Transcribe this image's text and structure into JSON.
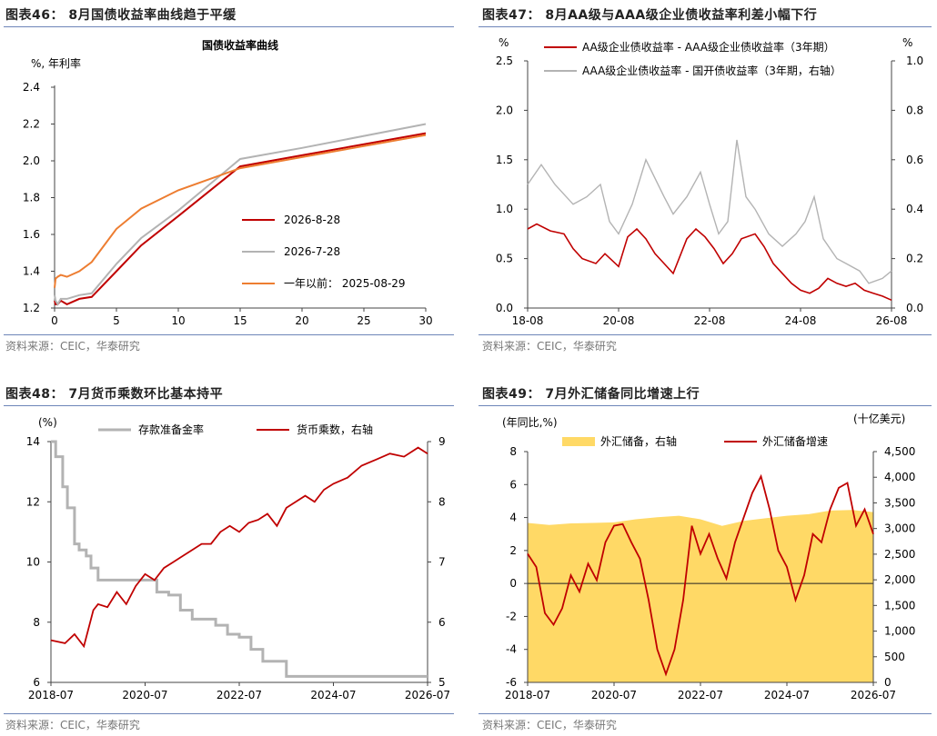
{
  "source": "资料来源：CEIC，华泰研究",
  "colors": {
    "red": "#c00000",
    "gray": "#b3b3b3",
    "orange": "#ed7d31",
    "gold": "#ffd966",
    "rule": "#6d85b8"
  },
  "chart_data": [
    {
      "id": "fig46",
      "panel_title": "图表46：  8月国债收益率曲线趋于平缓",
      "type": "line",
      "title": "国债收益率曲线",
      "ylabel": "%, 年利率",
      "xlim": [
        0,
        30
      ],
      "ylim": [
        1.2,
        2.4
      ],
      "x_ticks": [
        0,
        5,
        10,
        15,
        20,
        25,
        30
      ],
      "y_ticks": [
        "1.2",
        "1.4",
        "1.6",
        "1.8",
        "2.0",
        "2.2",
        "2.4"
      ],
      "legend": "inside-right",
      "series": [
        {
          "name": "2026-8-28",
          "color": "#c00000",
          "x": [
            0,
            0.08,
            0.25,
            0.5,
            1,
            2,
            3,
            5,
            7,
            10,
            15,
            20,
            30
          ],
          "y": [
            1.24,
            1.22,
            1.22,
            1.24,
            1.22,
            1.25,
            1.26,
            1.4,
            1.54,
            1.7,
            1.97,
            2.03,
            2.15
          ]
        },
        {
          "name": "2026-7-28",
          "color": "#b3b3b3",
          "x": [
            0,
            0.08,
            0.25,
            0.5,
            1,
            2,
            3,
            5,
            7,
            10,
            15,
            20,
            30
          ],
          "y": [
            1.27,
            1.24,
            1.22,
            1.25,
            1.25,
            1.27,
            1.28,
            1.44,
            1.58,
            1.73,
            2.01,
            2.07,
            2.2
          ]
        },
        {
          "name": "一年以前：  2025-08-29",
          "color": "#ed7d31",
          "x": [
            0,
            0.08,
            0.25,
            0.5,
            1,
            2,
            3,
            5,
            7,
            10,
            15,
            20,
            30
          ],
          "y": [
            1.31,
            1.36,
            1.37,
            1.38,
            1.37,
            1.4,
            1.45,
            1.63,
            1.74,
            1.84,
            1.96,
            2.02,
            2.14
          ]
        }
      ]
    },
    {
      "id": "fig47",
      "panel_title": "图表47：  8月AA级与AAA级企业债收益率利差小幅下行",
      "type": "line",
      "ylabel": "%",
      "ylabel_right": "%",
      "x_ticks": [
        "18-08",
        "20-08",
        "22-08",
        "24-08",
        "26-08"
      ],
      "ylim": [
        0,
        2.5
      ],
      "ylim_right": [
        0,
        1.0
      ],
      "y_ticks": [
        "0.0",
        "0.5",
        "1.0",
        "1.5",
        "2.0",
        "2.5"
      ],
      "y_ticks_right": [
        "0.0",
        "0.2",
        "0.4",
        "0.6",
        "0.8",
        "1.0"
      ],
      "legend": "top",
      "series": [
        {
          "name": "AA级企业债收益率 - AAA级企业债收益率（3年期）",
          "color": "#c00000",
          "axis": "left",
          "x": [
            0,
            0.2,
            0.5,
            0.8,
            1.0,
            1.2,
            1.5,
            1.7,
            2.0,
            2.2,
            2.4,
            2.6,
            2.8,
            3.0,
            3.2,
            3.5,
            3.7,
            3.9,
            4.1,
            4.3,
            4.5,
            4.7,
            5.0,
            5.2,
            5.4,
            5.6,
            5.8,
            6.0,
            6.2,
            6.4,
            6.6,
            6.8,
            7.0,
            7.2,
            7.4,
            7.6,
            7.8,
            8.0
          ],
          "y": [
            0.8,
            0.85,
            0.78,
            0.75,
            0.6,
            0.5,
            0.45,
            0.55,
            0.42,
            0.72,
            0.8,
            0.7,
            0.55,
            0.45,
            0.35,
            0.7,
            0.8,
            0.72,
            0.6,
            0.45,
            0.55,
            0.7,
            0.75,
            0.62,
            0.45,
            0.35,
            0.25,
            0.18,
            0.15,
            0.2,
            0.3,
            0.25,
            0.22,
            0.25,
            0.18,
            0.15,
            0.12,
            0.08
          ]
        },
        {
          "name": "AAA级企业债收益率 - 国开债收益率（3年期，右轴）",
          "color": "#b3b3b3",
          "axis": "right",
          "x": [
            0,
            0.3,
            0.6,
            1.0,
            1.3,
            1.6,
            1.8,
            2.0,
            2.3,
            2.6,
            3.0,
            3.2,
            3.5,
            3.8,
            4.0,
            4.2,
            4.4,
            4.6,
            4.8,
            5.0,
            5.3,
            5.6,
            5.9,
            6.1,
            6.3,
            6.5,
            6.8,
            7.0,
            7.3,
            7.5,
            7.8,
            8.0
          ],
          "y": [
            0.5,
            0.58,
            0.5,
            0.42,
            0.45,
            0.5,
            0.35,
            0.3,
            0.42,
            0.6,
            0.45,
            0.38,
            0.45,
            0.55,
            0.42,
            0.3,
            0.35,
            0.68,
            0.45,
            0.4,
            0.3,
            0.25,
            0.3,
            0.35,
            0.45,
            0.28,
            0.2,
            0.18,
            0.15,
            0.1,
            0.12,
            0.15
          ]
        }
      ]
    },
    {
      "id": "fig48",
      "panel_title": "图表48：  7月货币乘数环比基本持平",
      "type": "line",
      "ylabel": "(%)",
      "x_ticks": [
        "2018-07",
        "2020-07",
        "2022-07",
        "2024-07",
        "2026-07"
      ],
      "ylim": [
        6,
        14
      ],
      "ylim_right": [
        5,
        9
      ],
      "y_ticks": [
        "6",
        "8",
        "10",
        "12",
        "14"
      ],
      "y_ticks_right": [
        "5",
        "6",
        "7",
        "8",
        "9"
      ],
      "legend": "top",
      "series": [
        {
          "name": "存款准备金率",
          "color": "#b3b3b3",
          "axis": "left",
          "step": true,
          "x": [
            0,
            0.1,
            0.25,
            0.35,
            0.5,
            0.6,
            0.75,
            0.85,
            1.0,
            1.15,
            1.25,
            1.45,
            1.75,
            2.0,
            2.25,
            2.5,
            2.75,
            3.0,
            3.25,
            3.5,
            3.75,
            4.0,
            4.25,
            4.5,
            5.0,
            5.5,
            6.0,
            6.5,
            7.0,
            7.5,
            8.0
          ],
          "y": [
            14.5,
            13.5,
            12.5,
            11.8,
            10.6,
            10.4,
            10.2,
            9.8,
            9.4,
            9.4,
            9.4,
            9.4,
            9.4,
            9.4,
            9.0,
            8.9,
            8.4,
            8.1,
            8.1,
            7.9,
            7.6,
            7.5,
            7.1,
            6.7,
            6.2,
            6.2,
            6.2,
            6.2,
            6.2,
            6.2,
            6.2
          ]
        },
        {
          "name": "货币乘数，右轴",
          "color": "#c00000",
          "axis": "right",
          "x": [
            0,
            0.3,
            0.5,
            0.7,
            0.9,
            1.0,
            1.2,
            1.4,
            1.6,
            1.8,
            2.0,
            2.2,
            2.4,
            2.6,
            2.8,
            3.0,
            3.2,
            3.4,
            3.6,
            3.8,
            4.0,
            4.2,
            4.4,
            4.6,
            4.8,
            5.0,
            5.2,
            5.4,
            5.6,
            5.8,
            6.0,
            6.3,
            6.6,
            6.9,
            7.2,
            7.5,
            7.8,
            8.0
          ],
          "y": [
            5.7,
            5.65,
            5.8,
            5.6,
            6.2,
            6.3,
            6.25,
            6.5,
            6.3,
            6.6,
            6.8,
            6.7,
            6.9,
            7.0,
            7.1,
            7.2,
            7.3,
            7.3,
            7.5,
            7.6,
            7.5,
            7.65,
            7.7,
            7.8,
            7.6,
            7.9,
            8.0,
            8.1,
            8.0,
            8.2,
            8.3,
            8.4,
            8.6,
            8.7,
            8.8,
            8.75,
            8.9,
            8.8
          ]
        }
      ]
    },
    {
      "id": "fig49",
      "panel_title": "图表49：  7月外汇储备同比增速上行",
      "type": "area",
      "ylabel": "(年同比,%)",
      "ylabel_right": "(十亿美元)",
      "x_ticks": [
        "2018-07",
        "2020-07",
        "2022-07",
        "2024-07",
        "2026-07"
      ],
      "ylim": [
        -6,
        8
      ],
      "ylim_right": [
        0,
        4500
      ],
      "y_ticks": [
        "-6",
        "-4",
        "-2",
        "0",
        "2",
        "4",
        "6",
        "8"
      ],
      "y_ticks_right": [
        "0",
        "500",
        "1,000",
        "1,500",
        "2,000",
        "2,500",
        "3,000",
        "3,500",
        "4,000",
        "4,500"
      ],
      "legend": "top",
      "series": [
        {
          "name": "外汇储备，右轴",
          "color": "#ffd966",
          "axis": "right",
          "kind": "area",
          "x": [
            0,
            0.5,
            1.0,
            1.5,
            2.0,
            2.5,
            3.0,
            3.5,
            4.0,
            4.5,
            5.0,
            5.5,
            6.0,
            6.5,
            7.0,
            7.5,
            8.0
          ],
          "y": [
            3110,
            3070,
            3100,
            3110,
            3120,
            3180,
            3220,
            3250,
            3180,
            3050,
            3150,
            3200,
            3250,
            3280,
            3350,
            3360,
            3320
          ]
        },
        {
          "name": "外汇储备增速",
          "color": "#c00000",
          "axis": "left",
          "kind": "line",
          "x": [
            0,
            0.2,
            0.4,
            0.6,
            0.8,
            1.0,
            1.2,
            1.4,
            1.6,
            1.8,
            2.0,
            2.2,
            2.4,
            2.6,
            2.8,
            3.0,
            3.2,
            3.4,
            3.6,
            3.8,
            4.0,
            4.2,
            4.4,
            4.6,
            4.8,
            5.0,
            5.2,
            5.4,
            5.6,
            5.8,
            6.0,
            6.2,
            6.4,
            6.6,
            6.8,
            7.0,
            7.2,
            7.4,
            7.6,
            7.8,
            8.0
          ],
          "y": [
            1.8,
            1.0,
            -1.8,
            -2.5,
            -1.5,
            0.5,
            -0.5,
            1.2,
            0.2,
            2.5,
            3.5,
            3.6,
            2.5,
            1.5,
            -1.0,
            -4.0,
            -5.5,
            -4.0,
            -1.0,
            3.5,
            1.8,
            3.0,
            1.5,
            0.3,
            2.5,
            4.0,
            5.5,
            6.5,
            4.5,
            2.0,
            1.0,
            -1.0,
            0.5,
            3.0,
            2.5,
            4.5,
            5.8,
            6.1,
            3.5,
            4.5,
            3.0
          ]
        }
      ]
    }
  ]
}
